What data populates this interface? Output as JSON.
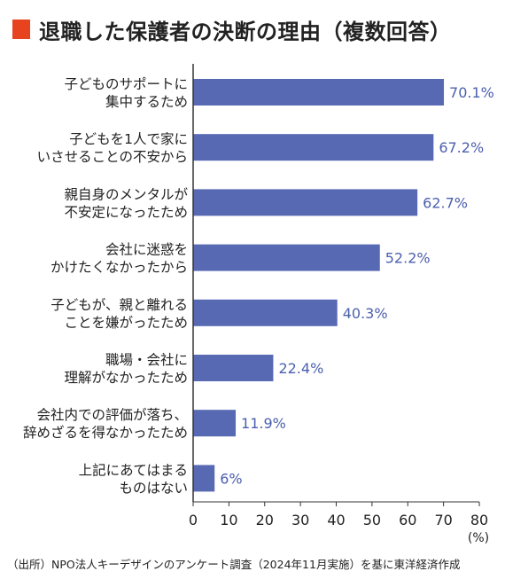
{
  "title": "退職した保護者の決断の理由（複数回答）",
  "source": "（出所）NPO法人キーデザインのアンケート調査（2024年11月実施）を基に東洋経済作成",
  "colors": {
    "bar": "#5869b3",
    "value_label": "#4b5fae",
    "marker": "#e8431f",
    "axis": "#333333"
  },
  "chart_data": {
    "type": "bar",
    "orientation": "horizontal",
    "title": "退職した保護者の決断の理由（複数回答）",
    "categories": [
      [
        "子どものサポートに",
        "集中するため"
      ],
      [
        "子どもを1人で家に",
        "いさせることの不安から"
      ],
      [
        "親自身のメンタルが",
        "不安定になったため"
      ],
      [
        "会社に迷惑を",
        "かけたくなかったから"
      ],
      [
        "子どもが、親と離れる",
        "ことを嫌がったため"
      ],
      [
        "職場・会社に",
        "理解がなかったため"
      ],
      [
        "会社内での評価が落ち、",
        "辞めざるを得なかったため"
      ],
      [
        "上記にあてはまる",
        "ものはない"
      ]
    ],
    "values": [
      70.1,
      67.2,
      62.7,
      52.2,
      40.3,
      22.4,
      11.9,
      6
    ],
    "value_labels": [
      "70.1%",
      "67.2%",
      "62.7%",
      "52.2%",
      "40.3%",
      "22.4%",
      "11.9%",
      "6%"
    ],
    "xlim": [
      0,
      80
    ],
    "xticks": [
      0,
      10,
      20,
      30,
      40,
      50,
      60,
      70,
      80
    ],
    "xunit": "(%)",
    "grid": false
  }
}
